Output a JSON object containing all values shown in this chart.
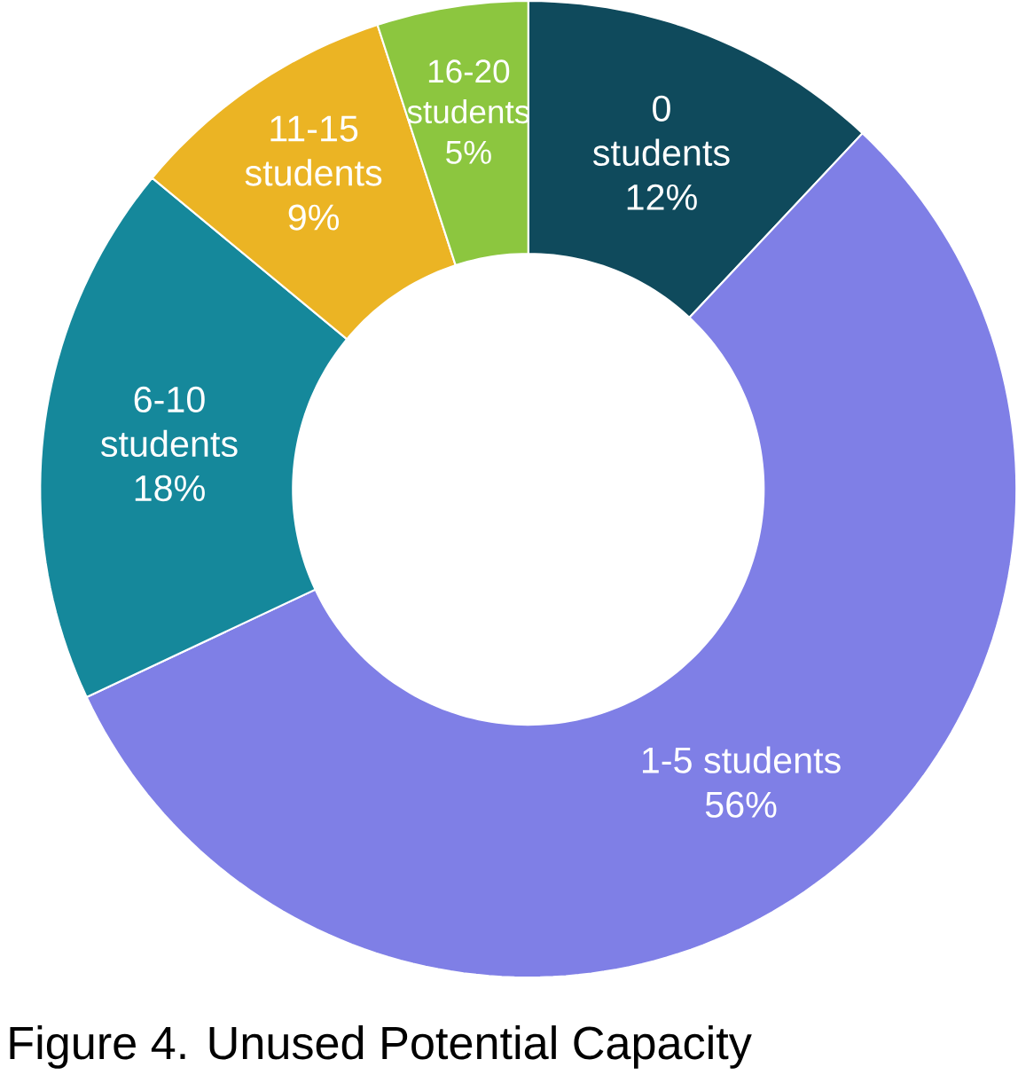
{
  "chart_data": {
    "type": "donut",
    "title": "Figure 4. Unused Potential Capacity",
    "categories": [
      "0 students",
      "1-5 students",
      "6-10 students",
      "11-15 students",
      "16-20 students"
    ],
    "values": [
      12,
      56,
      18,
      9,
      5
    ],
    "value_labels": [
      "12%",
      "56%",
      "18%",
      "9%",
      "5%"
    ],
    "colors": [
      "#0f4a5c",
      "#7f7fe6",
      "#15889b",
      "#ebb424",
      "#8cc63f"
    ]
  }
}
